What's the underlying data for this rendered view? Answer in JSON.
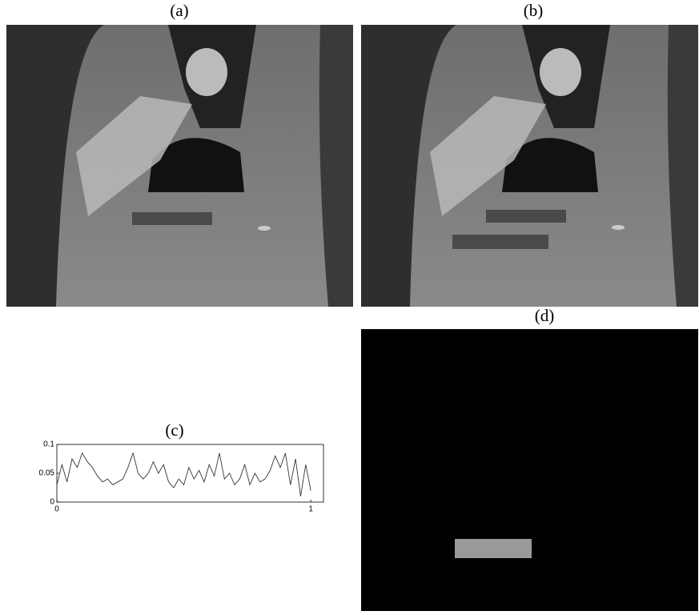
{
  "figure": {
    "labels": [
      "(a)",
      "(b)",
      "(d)"
    ]
  },
  "chart_data": {
    "type": "line",
    "title": "(c)",
    "x": [
      0,
      0.02,
      0.04,
      0.06,
      0.08,
      0.1,
      0.12,
      0.14,
      0.16,
      0.18,
      0.2,
      0.22,
      0.24,
      0.26,
      0.28,
      0.3,
      0.32,
      0.34,
      0.36,
      0.38,
      0.4,
      0.42,
      0.44,
      0.46,
      0.48,
      0.5,
      0.52,
      0.54,
      0.56,
      0.58,
      0.6,
      0.62,
      0.64,
      0.66,
      0.68,
      0.7,
      0.72,
      0.74,
      0.76,
      0.78,
      0.8,
      0.82,
      0.84,
      0.86,
      0.88,
      0.9,
      0.92,
      0.94,
      0.96,
      0.98,
      1.0
    ],
    "series": [
      {
        "color": "#333333",
        "values": [
          0.03,
          0.065,
          0.035,
          0.075,
          0.06,
          0.085,
          0.07,
          0.06,
          0.045,
          0.035,
          0.04,
          0.03,
          0.035,
          0.04,
          0.06,
          0.085,
          0.05,
          0.04,
          0.05,
          0.07,
          0.05,
          0.065,
          0.035,
          0.025,
          0.04,
          0.03,
          0.06,
          0.04,
          0.055,
          0.035,
          0.065,
          0.045,
          0.085,
          0.04,
          0.05,
          0.03,
          0.04,
          0.065,
          0.03,
          0.05,
          0.035,
          0.04,
          0.055,
          0.08,
          0.06,
          0.085,
          0.03,
          0.075,
          0.01,
          0.065,
          0.02
        ]
      }
    ],
    "xlim": [
      0,
      1.05
    ],
    "ylim": [
      0,
      0.1
    ],
    "xticks": [
      0,
      1
    ],
    "yticks": [
      0,
      0.05,
      0.1
    ]
  }
}
